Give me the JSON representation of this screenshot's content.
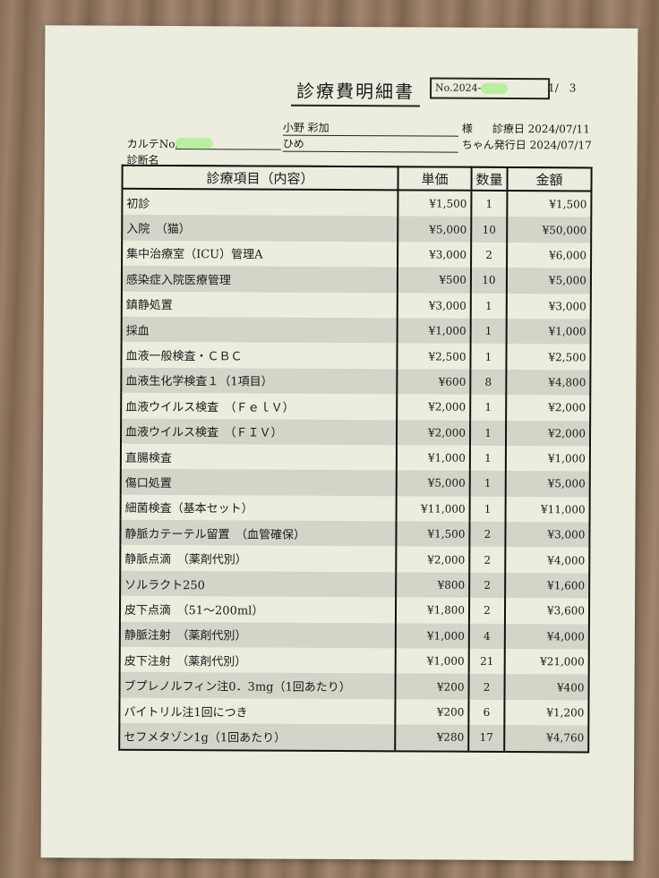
{
  "title": "診療費明細書",
  "doc_no": "No.2024-",
  "page": "1/　3",
  "owner_name": "小野 彩加",
  "owner_suffix": "様",
  "visit_date_label": "診療日",
  "visit_date": "2024/07/11",
  "chart_no_label": "カルテNo.",
  "pet_name": "ひめ",
  "pet_suffix": "ちゃん",
  "issue_date_label": "発行日",
  "issue_date": "2024/07/17",
  "diagnosis_label": "診断名",
  "headers": [
    "診療項目（内容）",
    "単価",
    "数量",
    "金額"
  ],
  "rows": [
    [
      "初診",
      "¥1,500",
      "1",
      "¥1,500"
    ],
    [
      "入院　（猫）",
      "¥5,000",
      "10",
      "¥50,000"
    ],
    [
      "集中治療室（ICU）管理A",
      "¥3,000",
      "2",
      "¥6,000"
    ],
    [
      "感染症入院医療管理",
      "¥500",
      "10",
      "¥5,000"
    ],
    [
      "鎮静処置",
      "¥3,000",
      "1",
      "¥3,000"
    ],
    [
      "採血",
      "¥1,000",
      "1",
      "¥1,000"
    ],
    [
      "血液一般検査・ＣＢＣ",
      "¥2,500",
      "1",
      "¥2,500"
    ],
    [
      "血液生化学検査１（1項目）",
      "¥600",
      "8",
      "¥4,800"
    ],
    [
      "血液ウイルス検査　（ＦｅｌＶ）",
      "¥2,000",
      "1",
      "¥2,000"
    ],
    [
      "血液ウイルス検査　（ＦＩＶ）",
      "¥2,000",
      "1",
      "¥2,000"
    ],
    [
      "直腸検査",
      "¥1,000",
      "1",
      "¥1,000"
    ],
    [
      "傷口処置",
      "¥5,000",
      "1",
      "¥5,000"
    ],
    [
      "細菌検査（基本セット）",
      "¥11,000",
      "1",
      "¥11,000"
    ],
    [
      "静脈カテーテル留置　（血管確保）",
      "¥1,500",
      "2",
      "¥3,000"
    ],
    [
      "静脈点滴　（薬剤代別）",
      "¥2,000",
      "2",
      "¥4,000"
    ],
    [
      "ソルラクト250",
      "¥800",
      "2",
      "¥1,600"
    ],
    [
      "皮下点滴　（51～200ml）",
      "¥1,800",
      "2",
      "¥3,600"
    ],
    [
      "静脈注射　（薬剤代別）",
      "¥1,000",
      "4",
      "¥4,000"
    ],
    [
      "皮下注射　（薬剤代別）",
      "¥1,000",
      "21",
      "¥21,000"
    ],
    [
      "ブプレノルフィン注0．3mg（1回あたり）",
      "¥200",
      "2",
      "¥400"
    ],
    [
      "バイトリル注1回につき",
      "¥200",
      "6",
      "¥1,200"
    ],
    [
      "セフメタゾン1g（1回あたり）",
      "¥280",
      "17",
      "¥4,760"
    ]
  ]
}
